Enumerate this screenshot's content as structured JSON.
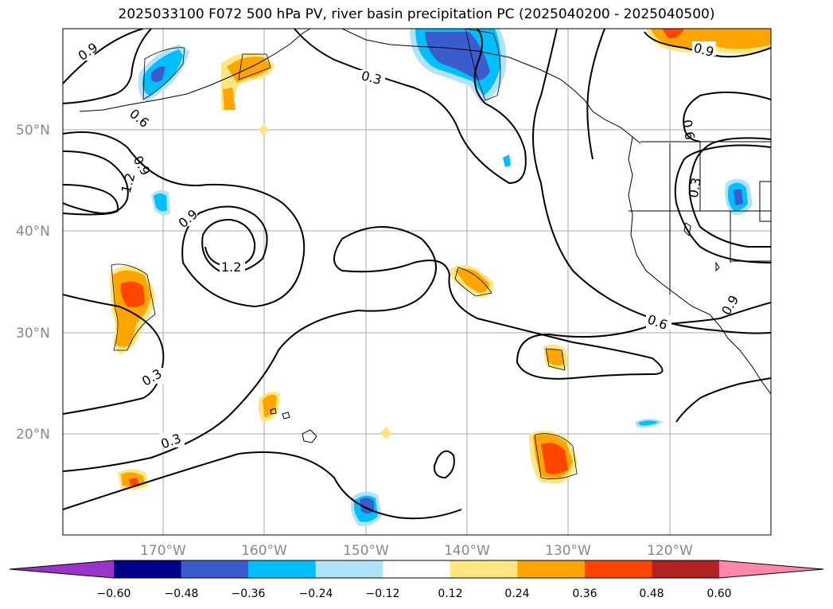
{
  "title": "2025033100 F072 500 hPa PV, river basin precipitation PC (2025040200 - 2025040500)",
  "map": {
    "lat_labels": [
      "50°N",
      "40°N",
      "30°N",
      "20°N"
    ],
    "lon_labels": [
      "170°W",
      "160°W",
      "150°W",
      "140°W",
      "130°W",
      "120°W"
    ],
    "contour_labels": [
      "0.9",
      "0.6",
      "0.9",
      "1.2",
      "0.9",
      "1.2",
      "0.3",
      "0.3",
      "0.3",
      "0.9",
      "0.6",
      "0.3",
      "0.6",
      "0.9"
    ]
  },
  "colorbar": {
    "ticks": [
      "−0.60",
      "−0.48",
      "−0.36",
      "−0.24",
      "−0.12",
      "0.12",
      "0.24",
      "0.36",
      "0.48",
      "0.60"
    ],
    "colors": [
      "#9933cc",
      "#000088",
      "#3a5ccc",
      "#00bfff",
      "#b0e2f8",
      "#ffffff",
      "#ffe680",
      "#ffa500",
      "#ff4500",
      "#b22222",
      "#ff88aa"
    ]
  }
}
